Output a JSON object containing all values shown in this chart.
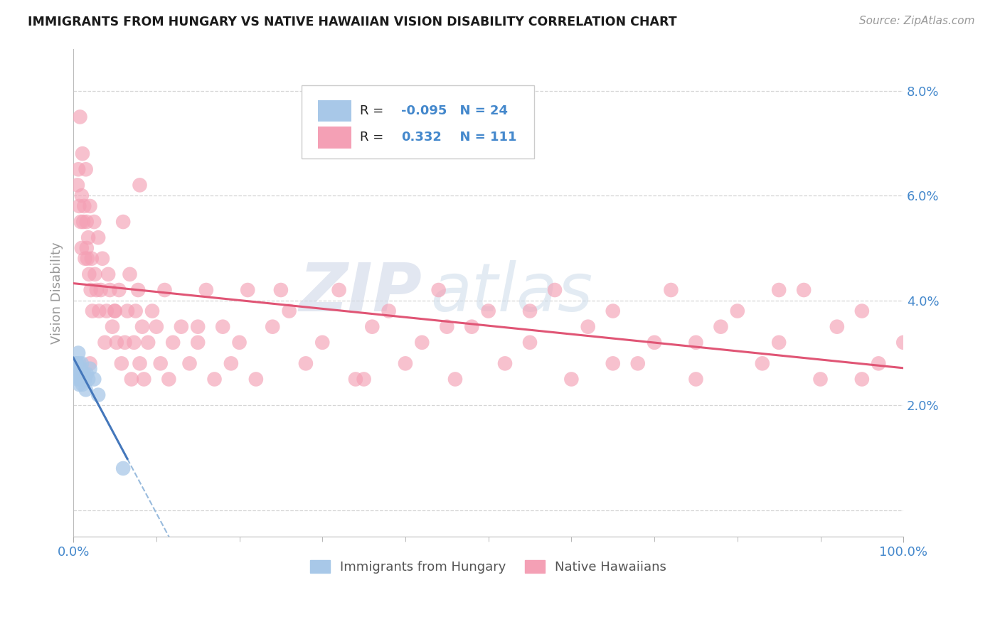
{
  "title": "IMMIGRANTS FROM HUNGARY VS NATIVE HAWAIIAN VISION DISABILITY CORRELATION CHART",
  "source": "Source: ZipAtlas.com",
  "ylabel": "Vision Disability",
  "yticks": [
    0.0,
    0.02,
    0.04,
    0.06,
    0.08
  ],
  "ytick_labels": [
    "",
    "2.0%",
    "4.0%",
    "6.0%",
    "8.0%"
  ],
  "xlim": [
    0.0,
    1.0
  ],
  "ylim": [
    -0.005,
    0.088
  ],
  "blue_color": "#a8c8e8",
  "pink_color": "#f4a0b5",
  "blue_line_color": "#4477bb",
  "blue_dash_color": "#99bbdd",
  "pink_line_color": "#e05575",
  "title_color": "#1a1a1a",
  "axis_color": "#4488cc",
  "background_color": "#ffffff",
  "grid_color": "#cccccc",
  "blue_n": 24,
  "pink_n": 111,
  "blue_r": -0.095,
  "pink_r": 0.332,
  "watermark1": "ZIP",
  "watermark2": "atlas",
  "blue_x": [
    0.003,
    0.003,
    0.004,
    0.005,
    0.006,
    0.006,
    0.007,
    0.007,
    0.008,
    0.009,
    0.009,
    0.01,
    0.01,
    0.011,
    0.012,
    0.013,
    0.014,
    0.015,
    0.016,
    0.018,
    0.02,
    0.025,
    0.03,
    0.06
  ],
  "blue_y": [
    0.028,
    0.026,
    0.028,
    0.025,
    0.027,
    0.03,
    0.024,
    0.028,
    0.025,
    0.027,
    0.025,
    0.026,
    0.028,
    0.024,
    0.025,
    0.026,
    0.025,
    0.023,
    0.026,
    0.025,
    0.027,
    0.025,
    0.022,
    0.008
  ],
  "pink_x": [
    0.005,
    0.006,
    0.007,
    0.008,
    0.009,
    0.01,
    0.01,
    0.011,
    0.012,
    0.013,
    0.014,
    0.015,
    0.016,
    0.016,
    0.017,
    0.018,
    0.019,
    0.02,
    0.021,
    0.022,
    0.023,
    0.025,
    0.026,
    0.028,
    0.03,
    0.031,
    0.033,
    0.035,
    0.038,
    0.04,
    0.042,
    0.044,
    0.047,
    0.05,
    0.052,
    0.055,
    0.058,
    0.06,
    0.062,
    0.065,
    0.068,
    0.07,
    0.073,
    0.075,
    0.078,
    0.08,
    0.083,
    0.085,
    0.09,
    0.095,
    0.1,
    0.105,
    0.11,
    0.115,
    0.12,
    0.13,
    0.14,
    0.15,
    0.16,
    0.17,
    0.18,
    0.19,
    0.2,
    0.21,
    0.22,
    0.24,
    0.26,
    0.28,
    0.3,
    0.32,
    0.34,
    0.36,
    0.38,
    0.4,
    0.42,
    0.44,
    0.46,
    0.48,
    0.5,
    0.52,
    0.55,
    0.58,
    0.6,
    0.62,
    0.65,
    0.68,
    0.7,
    0.72,
    0.75,
    0.78,
    0.8,
    0.83,
    0.85,
    0.88,
    0.9,
    0.92,
    0.95,
    0.97,
    1.0,
    0.25,
    0.35,
    0.45,
    0.55,
    0.65,
    0.75,
    0.85,
    0.95,
    0.15,
    0.05,
    0.02,
    0.08
  ],
  "pink_y": [
    0.062,
    0.065,
    0.058,
    0.075,
    0.055,
    0.06,
    0.05,
    0.068,
    0.055,
    0.058,
    0.048,
    0.065,
    0.05,
    0.055,
    0.048,
    0.052,
    0.045,
    0.058,
    0.042,
    0.048,
    0.038,
    0.055,
    0.045,
    0.042,
    0.052,
    0.038,
    0.042,
    0.048,
    0.032,
    0.038,
    0.045,
    0.042,
    0.035,
    0.038,
    0.032,
    0.042,
    0.028,
    0.055,
    0.032,
    0.038,
    0.045,
    0.025,
    0.032,
    0.038,
    0.042,
    0.028,
    0.035,
    0.025,
    0.032,
    0.038,
    0.035,
    0.028,
    0.042,
    0.025,
    0.032,
    0.035,
    0.028,
    0.032,
    0.042,
    0.025,
    0.035,
    0.028,
    0.032,
    0.042,
    0.025,
    0.035,
    0.038,
    0.028,
    0.032,
    0.042,
    0.025,
    0.035,
    0.038,
    0.028,
    0.032,
    0.042,
    0.025,
    0.035,
    0.038,
    0.028,
    0.032,
    0.042,
    0.025,
    0.035,
    0.038,
    0.028,
    0.032,
    0.042,
    0.025,
    0.035,
    0.038,
    0.028,
    0.032,
    0.042,
    0.025,
    0.035,
    0.038,
    0.028,
    0.032,
    0.042,
    0.025,
    0.035,
    0.038,
    0.028,
    0.032,
    0.042,
    0.025,
    0.035,
    0.038,
    0.028,
    0.062
  ]
}
